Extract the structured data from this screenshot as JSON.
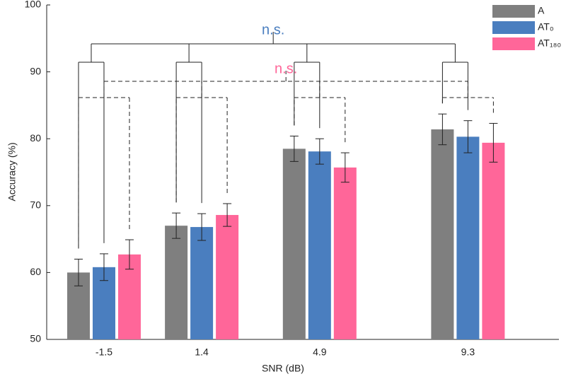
{
  "chart_data": {
    "type": "bar",
    "xlabel": "SNR (dB)",
    "ylabel": "Accuracy (%)",
    "x": [
      -1.5,
      1.4,
      4.9,
      9.3
    ],
    "xlim": [
      -3.2,
      12
    ],
    "xticks": [
      -1.5,
      1.4,
      4.9,
      9.3
    ],
    "ylim": [
      50,
      100
    ],
    "yticks": [
      50,
      60,
      70,
      80,
      90,
      100
    ],
    "legend": "upper right",
    "series": [
      {
        "name": "A",
        "color": "#7f7f7f",
        "values": [
          60.0,
          67.0,
          78.5,
          81.4
        ],
        "errors": [
          2.0,
          1.9,
          1.9,
          2.3
        ]
      },
      {
        "name": "AT₀",
        "color": "#4a7ebf",
        "values": [
          60.8,
          66.8,
          78.1,
          80.3
        ],
        "errors": [
          2.0,
          2.0,
          1.9,
          2.4
        ]
      },
      {
        "name": "AT₁₈₀",
        "color": "#ff6699",
        "values": [
          62.7,
          68.6,
          75.7,
          79.4
        ],
        "errors": [
          2.2,
          1.7,
          2.2,
          2.9
        ]
      }
    ],
    "annotations": [
      {
        "text": "n.s.",
        "color": "#4a7ebf"
      },
      {
        "text": "n.s.",
        "color": "#ff6699"
      }
    ]
  }
}
